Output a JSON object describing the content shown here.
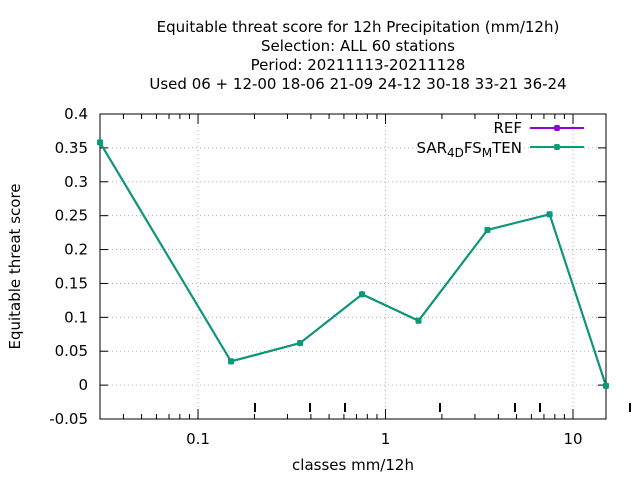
{
  "chart_data": {
    "type": "line",
    "title_lines": [
      "Equitable threat score  for 12h Precipitation (mm/12h)",
      "Selection: ALL     60 stations",
      "Period: 20211113-20211128",
      "Used  06  + 12-00 18-06 21-09 24-12 30-18 33-21 36-24"
    ],
    "xlabel": "classes mm/12h",
    "ylabel": "Equitable threat score",
    "x_scale": "log",
    "xlim": [
      0.03,
      15
    ],
    "ylim": [
      -0.05,
      0.4
    ],
    "x_ticks": [
      {
        "value": 0.1,
        "label": "0.1"
      },
      {
        "value": 1,
        "label": "1"
      },
      {
        "value": 10,
        "label": "10"
      }
    ],
    "y_ticks": [
      {
        "value": -0.05,
        "label": "-0.05"
      },
      {
        "value": 0,
        "label": "0"
      },
      {
        "value": 0.05,
        "label": "0.05"
      },
      {
        "value": 0.1,
        "label": "0.1"
      },
      {
        "value": 0.15,
        "label": "0.15"
      },
      {
        "value": 0.2,
        "label": "0.2"
      },
      {
        "value": 0.25,
        "label": "0.25"
      },
      {
        "value": 0.3,
        "label": "0.3"
      },
      {
        "value": 0.35,
        "label": "0.35"
      },
      {
        "value": 0.4,
        "label": "0.4"
      }
    ],
    "grid": true,
    "legend_position": "top-right",
    "series": [
      {
        "name": "REF",
        "color": "#9400d3",
        "x": [
          0.03,
          0.15,
          0.35,
          0.75,
          1.5,
          3.5,
          7.5,
          15
        ],
        "y": [
          0.358,
          0.035,
          0.062,
          0.134,
          0.095,
          0.229,
          0.252,
          -0.001
        ]
      },
      {
        "name_parts": [
          "SAR",
          "4D",
          "FS",
          "M",
          "TEN"
        ],
        "color": "#009e73",
        "x": [
          0.03,
          0.15,
          0.35,
          0.75,
          1.5,
          3.5,
          7.5,
          15
        ],
        "y": [
          0.358,
          0.035,
          0.062,
          0.134,
          0.095,
          0.229,
          0.252,
          -0.001
        ]
      }
    ]
  }
}
